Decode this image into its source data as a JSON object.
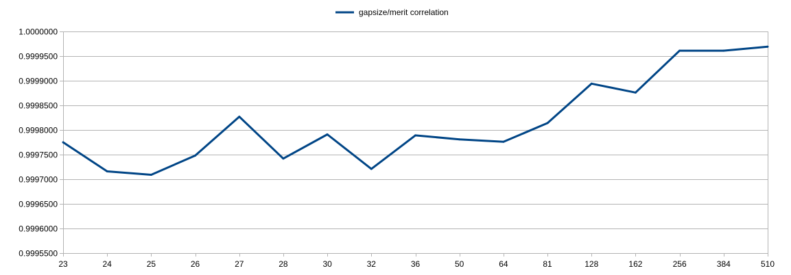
{
  "chart_data": {
    "type": "line",
    "title": "",
    "xlabel": "",
    "ylabel": "",
    "categories": [
      "23",
      "24",
      "25",
      "26",
      "27",
      "28",
      "30",
      "32",
      "36",
      "50",
      "64",
      "81",
      "128",
      "162",
      "256",
      "384",
      "510"
    ],
    "series": [
      {
        "name": "gapsize/merit correlation",
        "color": "#004586",
        "values": [
          0.999775,
          0.999716,
          0.999709,
          0.999748,
          0.999827,
          0.999742,
          0.999791,
          0.999721,
          0.999789,
          0.999781,
          0.999776,
          0.999814,
          0.999894,
          0.999876,
          0.999961,
          0.999961,
          0.999969
        ]
      }
    ],
    "ylim": [
      0.99955,
      1.0
    ],
    "y_ticks": [
      "0.9995500",
      "0.9996000",
      "0.9996500",
      "0.9997000",
      "0.9997500",
      "0.9998000",
      "0.9998500",
      "0.9999000",
      "0.9999500",
      "1.0000000"
    ],
    "y_tick_values": [
      0.99955,
      0.9996,
      0.99965,
      0.9997,
      0.99975,
      0.9998,
      0.99985,
      0.9999,
      0.99995,
      1.0
    ],
    "grid": true,
    "legend_position": "top-center"
  }
}
